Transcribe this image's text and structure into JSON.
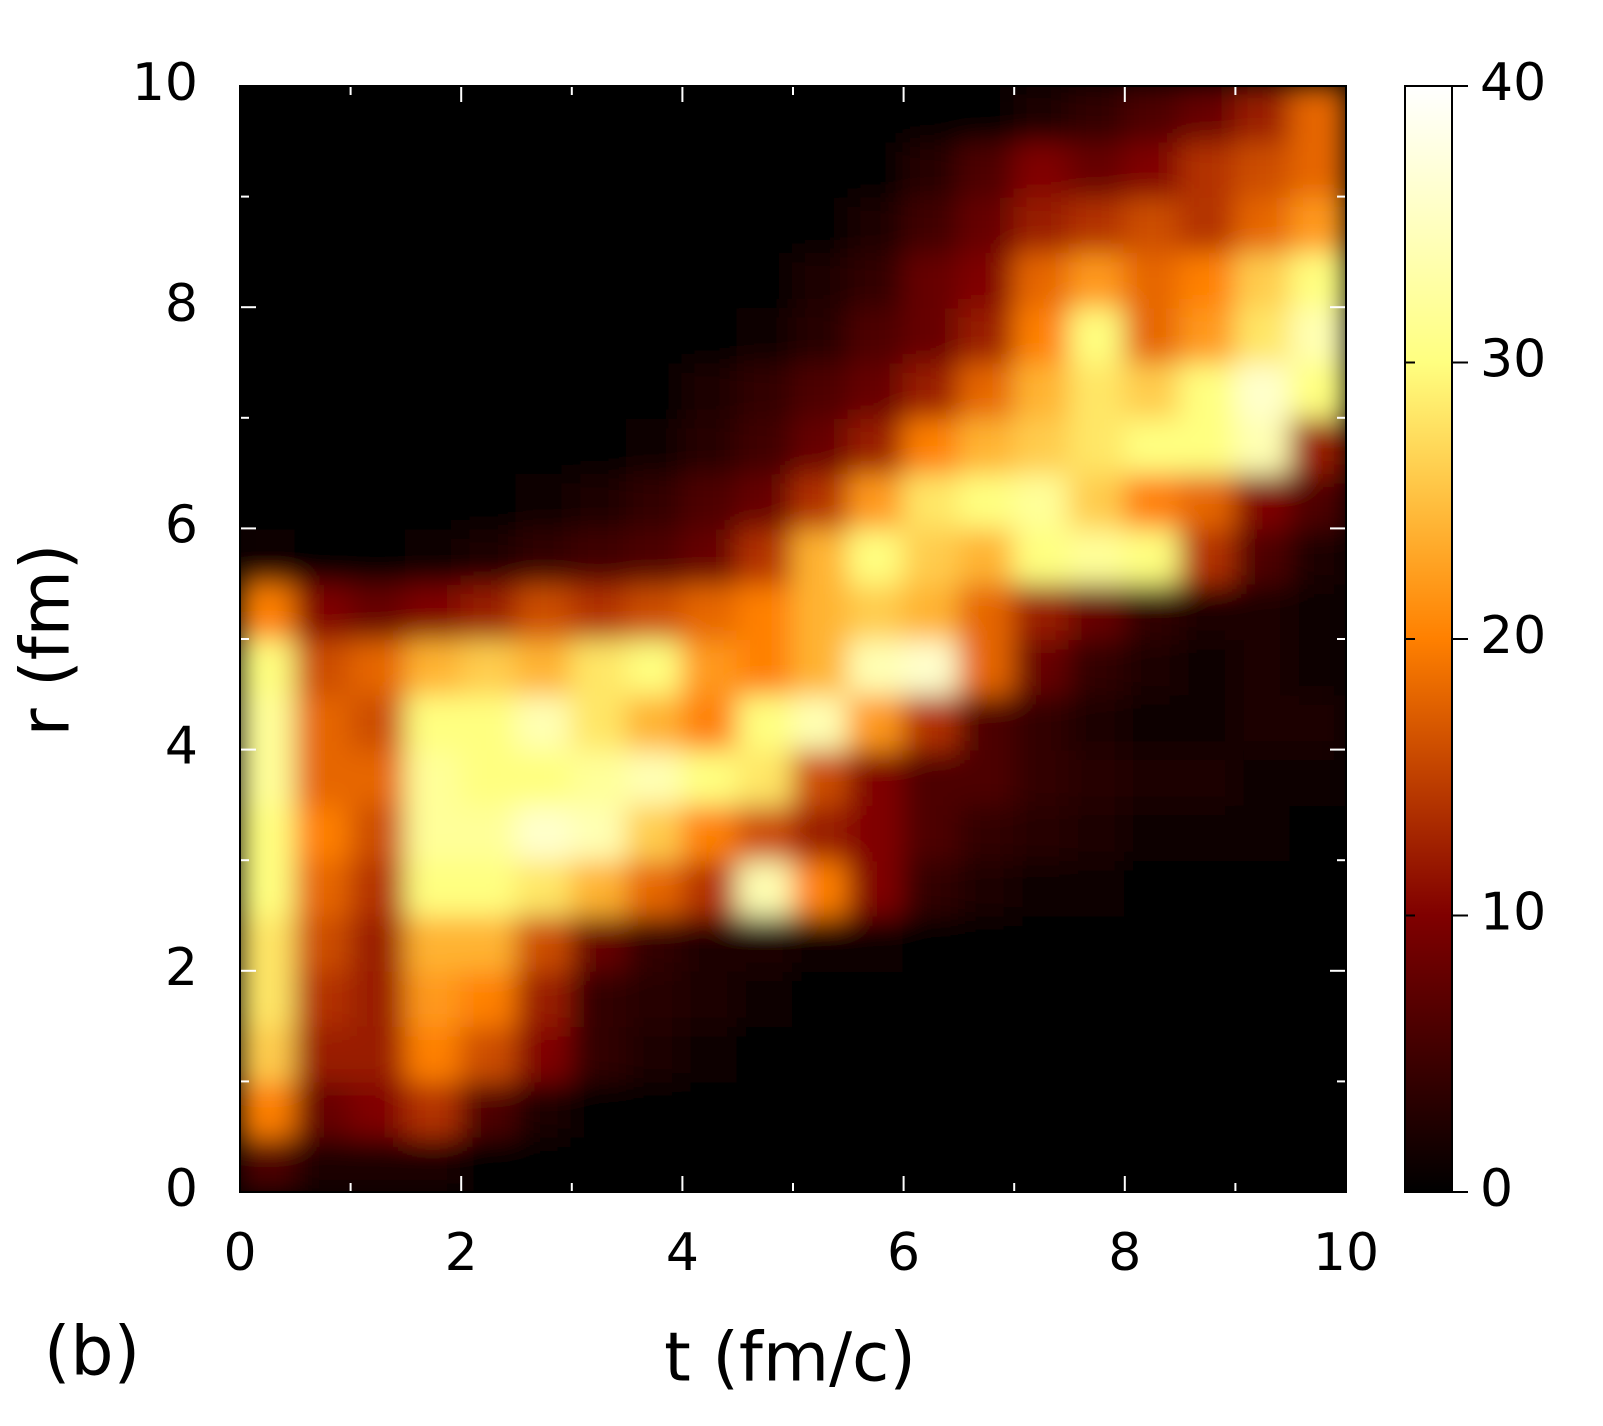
{
  "chart_data": {
    "type": "heatmap",
    "panel_label": "(b)",
    "xlabel": "t (fm/c)",
    "ylabel": "r (fm)",
    "x": [
      0.25,
      0.75,
      1.25,
      1.75,
      2.25,
      2.75,
      3.25,
      3.75,
      4.25,
      4.75,
      5.25,
      5.75,
      6.25,
      6.75,
      7.25,
      7.75,
      8.25,
      8.75,
      9.25,
      9.75
    ],
    "y": [
      0.25,
      0.75,
      1.25,
      1.75,
      2.25,
      2.75,
      3.25,
      3.75,
      4.25,
      4.75,
      5.25,
      5.75,
      6.25,
      6.75,
      7.25,
      7.75,
      8.25,
      8.75,
      9.25,
      9.75
    ],
    "z": [
      [
        6,
        2,
        2,
        2,
        0,
        0,
        0,
        0,
        0,
        0,
        0,
        0,
        0,
        0,
        0,
        0,
        0,
        0,
        0,
        0
      ],
      [
        20,
        8,
        10,
        14,
        6,
        2,
        0,
        0,
        0,
        0,
        0,
        0,
        0,
        0,
        0,
        0,
        0,
        0,
        0,
        0
      ],
      [
        26,
        12,
        12,
        20,
        16,
        10,
        4,
        2,
        1,
        0,
        0,
        0,
        0,
        0,
        0,
        0,
        0,
        0,
        0,
        0
      ],
      [
        28,
        14,
        12,
        22,
        20,
        12,
        4,
        3,
        2,
        1,
        0,
        0,
        0,
        0,
        0,
        0,
        0,
        0,
        0,
        0
      ],
      [
        28,
        16,
        12,
        24,
        24,
        16,
        8,
        4,
        2,
        2,
        1,
        1,
        0,
        0,
        0,
        0,
        0,
        0,
        0,
        0
      ],
      [
        30,
        18,
        14,
        30,
        30,
        28,
        24,
        18,
        14,
        34,
        20,
        10,
        4,
        2,
        1,
        1,
        0,
        0,
        0,
        0
      ],
      [
        30,
        20,
        16,
        32,
        32,
        36,
        34,
        26,
        20,
        16,
        12,
        10,
        6,
        4,
        3,
        2,
        1,
        1,
        1,
        0
      ],
      [
        32,
        18,
        18,
        32,
        30,
        30,
        32,
        34,
        30,
        28,
        16,
        10,
        6,
        6,
        4,
        3,
        2,
        2,
        1,
        1
      ],
      [
        32,
        18,
        16,
        30,
        30,
        34,
        28,
        24,
        20,
        30,
        34,
        22,
        14,
        6,
        4,
        2,
        1,
        1,
        2,
        2
      ],
      [
        30,
        16,
        18,
        24,
        26,
        24,
        28,
        30,
        22,
        20,
        24,
        34,
        36,
        18,
        8,
        4,
        2,
        1,
        2,
        1
      ],
      [
        20,
        10,
        8,
        10,
        12,
        16,
        14,
        16,
        18,
        20,
        24,
        26,
        24,
        18,
        12,
        8,
        4,
        2,
        2,
        1
      ],
      [
        1,
        0,
        0,
        1,
        2,
        4,
        5,
        6,
        8,
        14,
        24,
        30,
        26,
        24,
        30,
        32,
        30,
        14,
        6,
        2
      ],
      [
        0,
        0,
        0,
        0,
        0,
        1,
        2,
        4,
        6,
        8,
        14,
        22,
        28,
        30,
        32,
        26,
        20,
        18,
        10,
        6
      ],
      [
        0,
        0,
        0,
        0,
        0,
        0,
        0,
        1,
        3,
        5,
        8,
        12,
        20,
        24,
        26,
        28,
        30,
        30,
        34,
        12
      ],
      [
        0,
        0,
        0,
        0,
        0,
        0,
        0,
        0,
        2,
        4,
        6,
        8,
        12,
        18,
        24,
        28,
        26,
        30,
        36,
        30
      ],
      [
        0,
        0,
        0,
        0,
        0,
        0,
        0,
        0,
        0,
        1,
        3,
        6,
        8,
        12,
        20,
        30,
        18,
        22,
        28,
        34
      ],
      [
        0,
        0,
        0,
        0,
        0,
        0,
        0,
        0,
        0,
        0,
        2,
        4,
        8,
        10,
        18,
        22,
        18,
        20,
        26,
        30
      ],
      [
        0,
        0,
        0,
        0,
        0,
        0,
        0,
        0,
        0,
        0,
        0,
        2,
        5,
        8,
        12,
        14,
        16,
        14,
        18,
        22
      ],
      [
        0,
        0,
        0,
        0,
        0,
        0,
        0,
        0,
        0,
        0,
        0,
        0,
        3,
        6,
        10,
        8,
        10,
        14,
        16,
        18
      ],
      [
        0,
        0,
        0,
        0,
        0,
        0,
        0,
        0,
        0,
        0,
        0,
        0,
        0,
        0,
        2,
        4,
        6,
        8,
        12,
        18
      ]
    ],
    "xlim": [
      0,
      10
    ],
    "ylim": [
      0,
      10
    ],
    "zlim": [
      0,
      40
    ],
    "xticks": [
      0,
      2,
      4,
      6,
      8,
      10
    ],
    "yticks": [
      0,
      2,
      4,
      6,
      8,
      10
    ],
    "xminorticks": [
      1,
      3,
      5,
      7,
      9
    ],
    "yminorticks": [
      1,
      3,
      5,
      7,
      9
    ],
    "zticks": [
      0,
      10,
      20,
      30,
      40
    ],
    "colormap": [
      "#000000",
      "#800000",
      "#ff8000",
      "#ffff80",
      "#ffffff"
    ]
  }
}
